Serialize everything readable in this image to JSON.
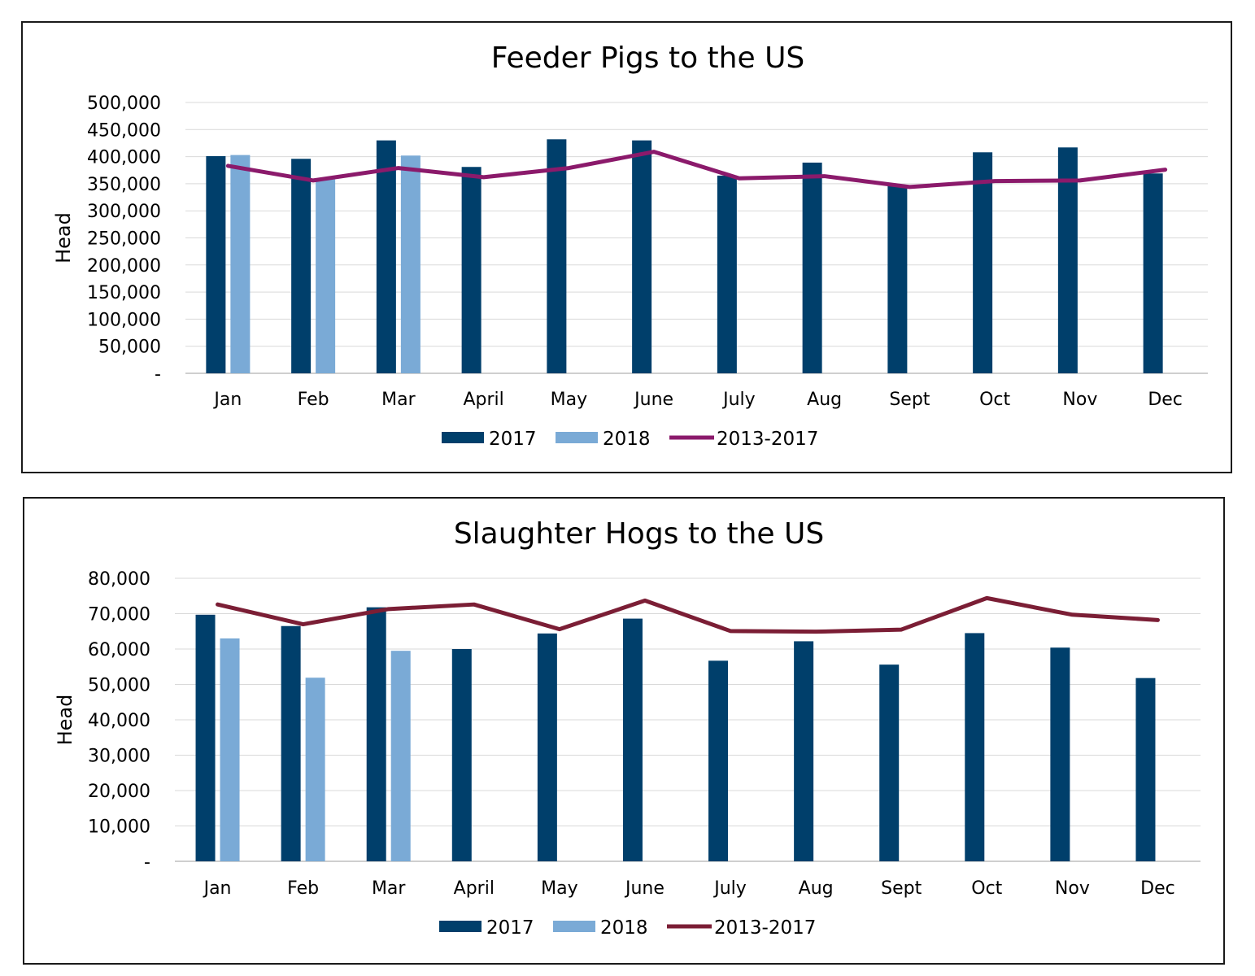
{
  "chart_data": [
    {
      "type": "bar",
      "title": "Feeder Pigs to the US",
      "ylabel": "Head",
      "xlabel": "",
      "ylim": [
        0,
        500000
      ],
      "y_ticks": [
        "-",
        "50,000",
        "100,000",
        "150,000",
        "200,000",
        "250,000",
        "300,000",
        "350,000",
        "400,000",
        "450,000",
        "500,000"
      ],
      "grid": true,
      "legend_position": "bottom",
      "categories": [
        "Jan",
        "Feb",
        "Mar",
        "April",
        "May",
        "June",
        "July",
        "Aug",
        "Sept",
        "Oct",
        "Nov",
        "Dec"
      ],
      "series": [
        {
          "name": "2017",
          "kind": "bar",
          "color": "#003f6b",
          "values": [
            401000,
            396000,
            430000,
            381000,
            432000,
            430000,
            365000,
            389000,
            346000,
            408000,
            417000,
            369000
          ]
        },
        {
          "name": "2018",
          "kind": "bar",
          "color": "#7aaad6",
          "values": [
            403000,
            358000,
            402000,
            null,
            null,
            null,
            null,
            null,
            null,
            null,
            null,
            null
          ]
        },
        {
          "name": "2013-2017",
          "kind": "line",
          "color": "#8b1a6b",
          "values": [
            383000,
            356000,
            379000,
            362000,
            379000,
            409000,
            360000,
            364000,
            344000,
            355000,
            356000,
            376000
          ]
        }
      ]
    },
    {
      "type": "bar",
      "title": "Slaughter Hogs to the US",
      "ylabel": "Head",
      "xlabel": "",
      "ylim": [
        0,
        80000
      ],
      "y_ticks": [
        "-",
        "10,000",
        "20,000",
        "30,000",
        "40,000",
        "50,000",
        "60,000",
        "70,000",
        "80,000"
      ],
      "grid": true,
      "legend_position": "bottom",
      "categories": [
        "Jan",
        "Feb",
        "Mar",
        "April",
        "May",
        "June",
        "July",
        "Aug",
        "Sept",
        "Oct",
        "Nov",
        "Dec"
      ],
      "series": [
        {
          "name": "2017",
          "kind": "bar",
          "color": "#003f6b",
          "values": [
            69700,
            66500,
            71800,
            60000,
            64400,
            68600,
            56700,
            62200,
            55600,
            64500,
            60400,
            51800
          ]
        },
        {
          "name": "2018",
          "kind": "bar",
          "color": "#7aaad6",
          "values": [
            63000,
            51900,
            59500,
            null,
            null,
            null,
            null,
            null,
            null,
            null,
            null,
            null
          ]
        },
        {
          "name": "2013-2017",
          "kind": "line",
          "color": "#7b1e35",
          "values": [
            72600,
            67000,
            71300,
            72600,
            65600,
            73700,
            65100,
            64900,
            65500,
            74400,
            69700,
            68200
          ]
        }
      ]
    }
  ]
}
